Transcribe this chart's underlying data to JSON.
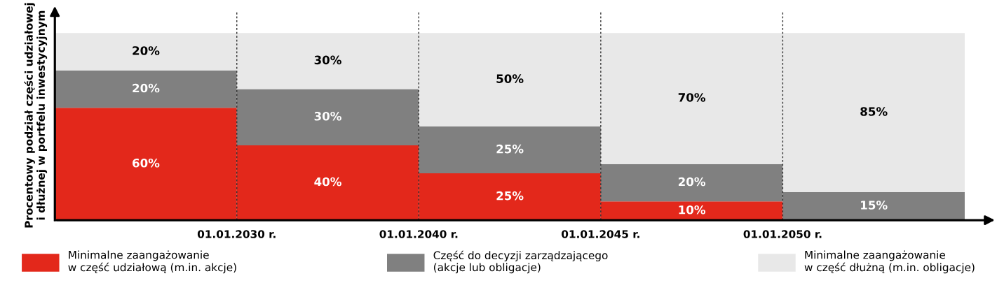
{
  "chart_data": {
    "type": "bar",
    "ylabel": "Procentowy podział części udziałowej\ni dłużnej w portfelu inwestycyjnym",
    "categories": [
      null,
      null,
      null,
      null,
      null
    ],
    "stacked": true,
    "series": [
      {
        "name": "Minimalne zaangażowanie\nw część udziałową (m.in. akcje)",
        "color": "#e3281b",
        "values": [
          60,
          40,
          25,
          10,
          0
        ],
        "value_labels": [
          "60%",
          "40%",
          "25%",
          "10%",
          null
        ]
      },
      {
        "name": "Część do decyzji zarządzającego\n(akcje lub obligacje)",
        "color": "#808080",
        "values": [
          20,
          30,
          25,
          20,
          15
        ],
        "value_labels": [
          "20%",
          "30%",
          "25%",
          "20%",
          "15%"
        ]
      },
      {
        "name": "Minimalne zaangażowanie\nw część dłużną (m.in. obligacje)",
        "color": "#e8e8e8",
        "values": [
          20,
          30,
          50,
          70,
          85
        ],
        "value_labels": [
          "20%",
          "30%",
          "50%",
          "70%",
          "85%"
        ]
      }
    ],
    "annotations": [
      "01.01.2030 r.",
      "01.01.2040 r.",
      "01.01.2045 r.",
      "01.01.2050 r."
    ],
    "ylim": [
      0,
      112
    ],
    "legend": "bottom",
    "grid": false
  }
}
